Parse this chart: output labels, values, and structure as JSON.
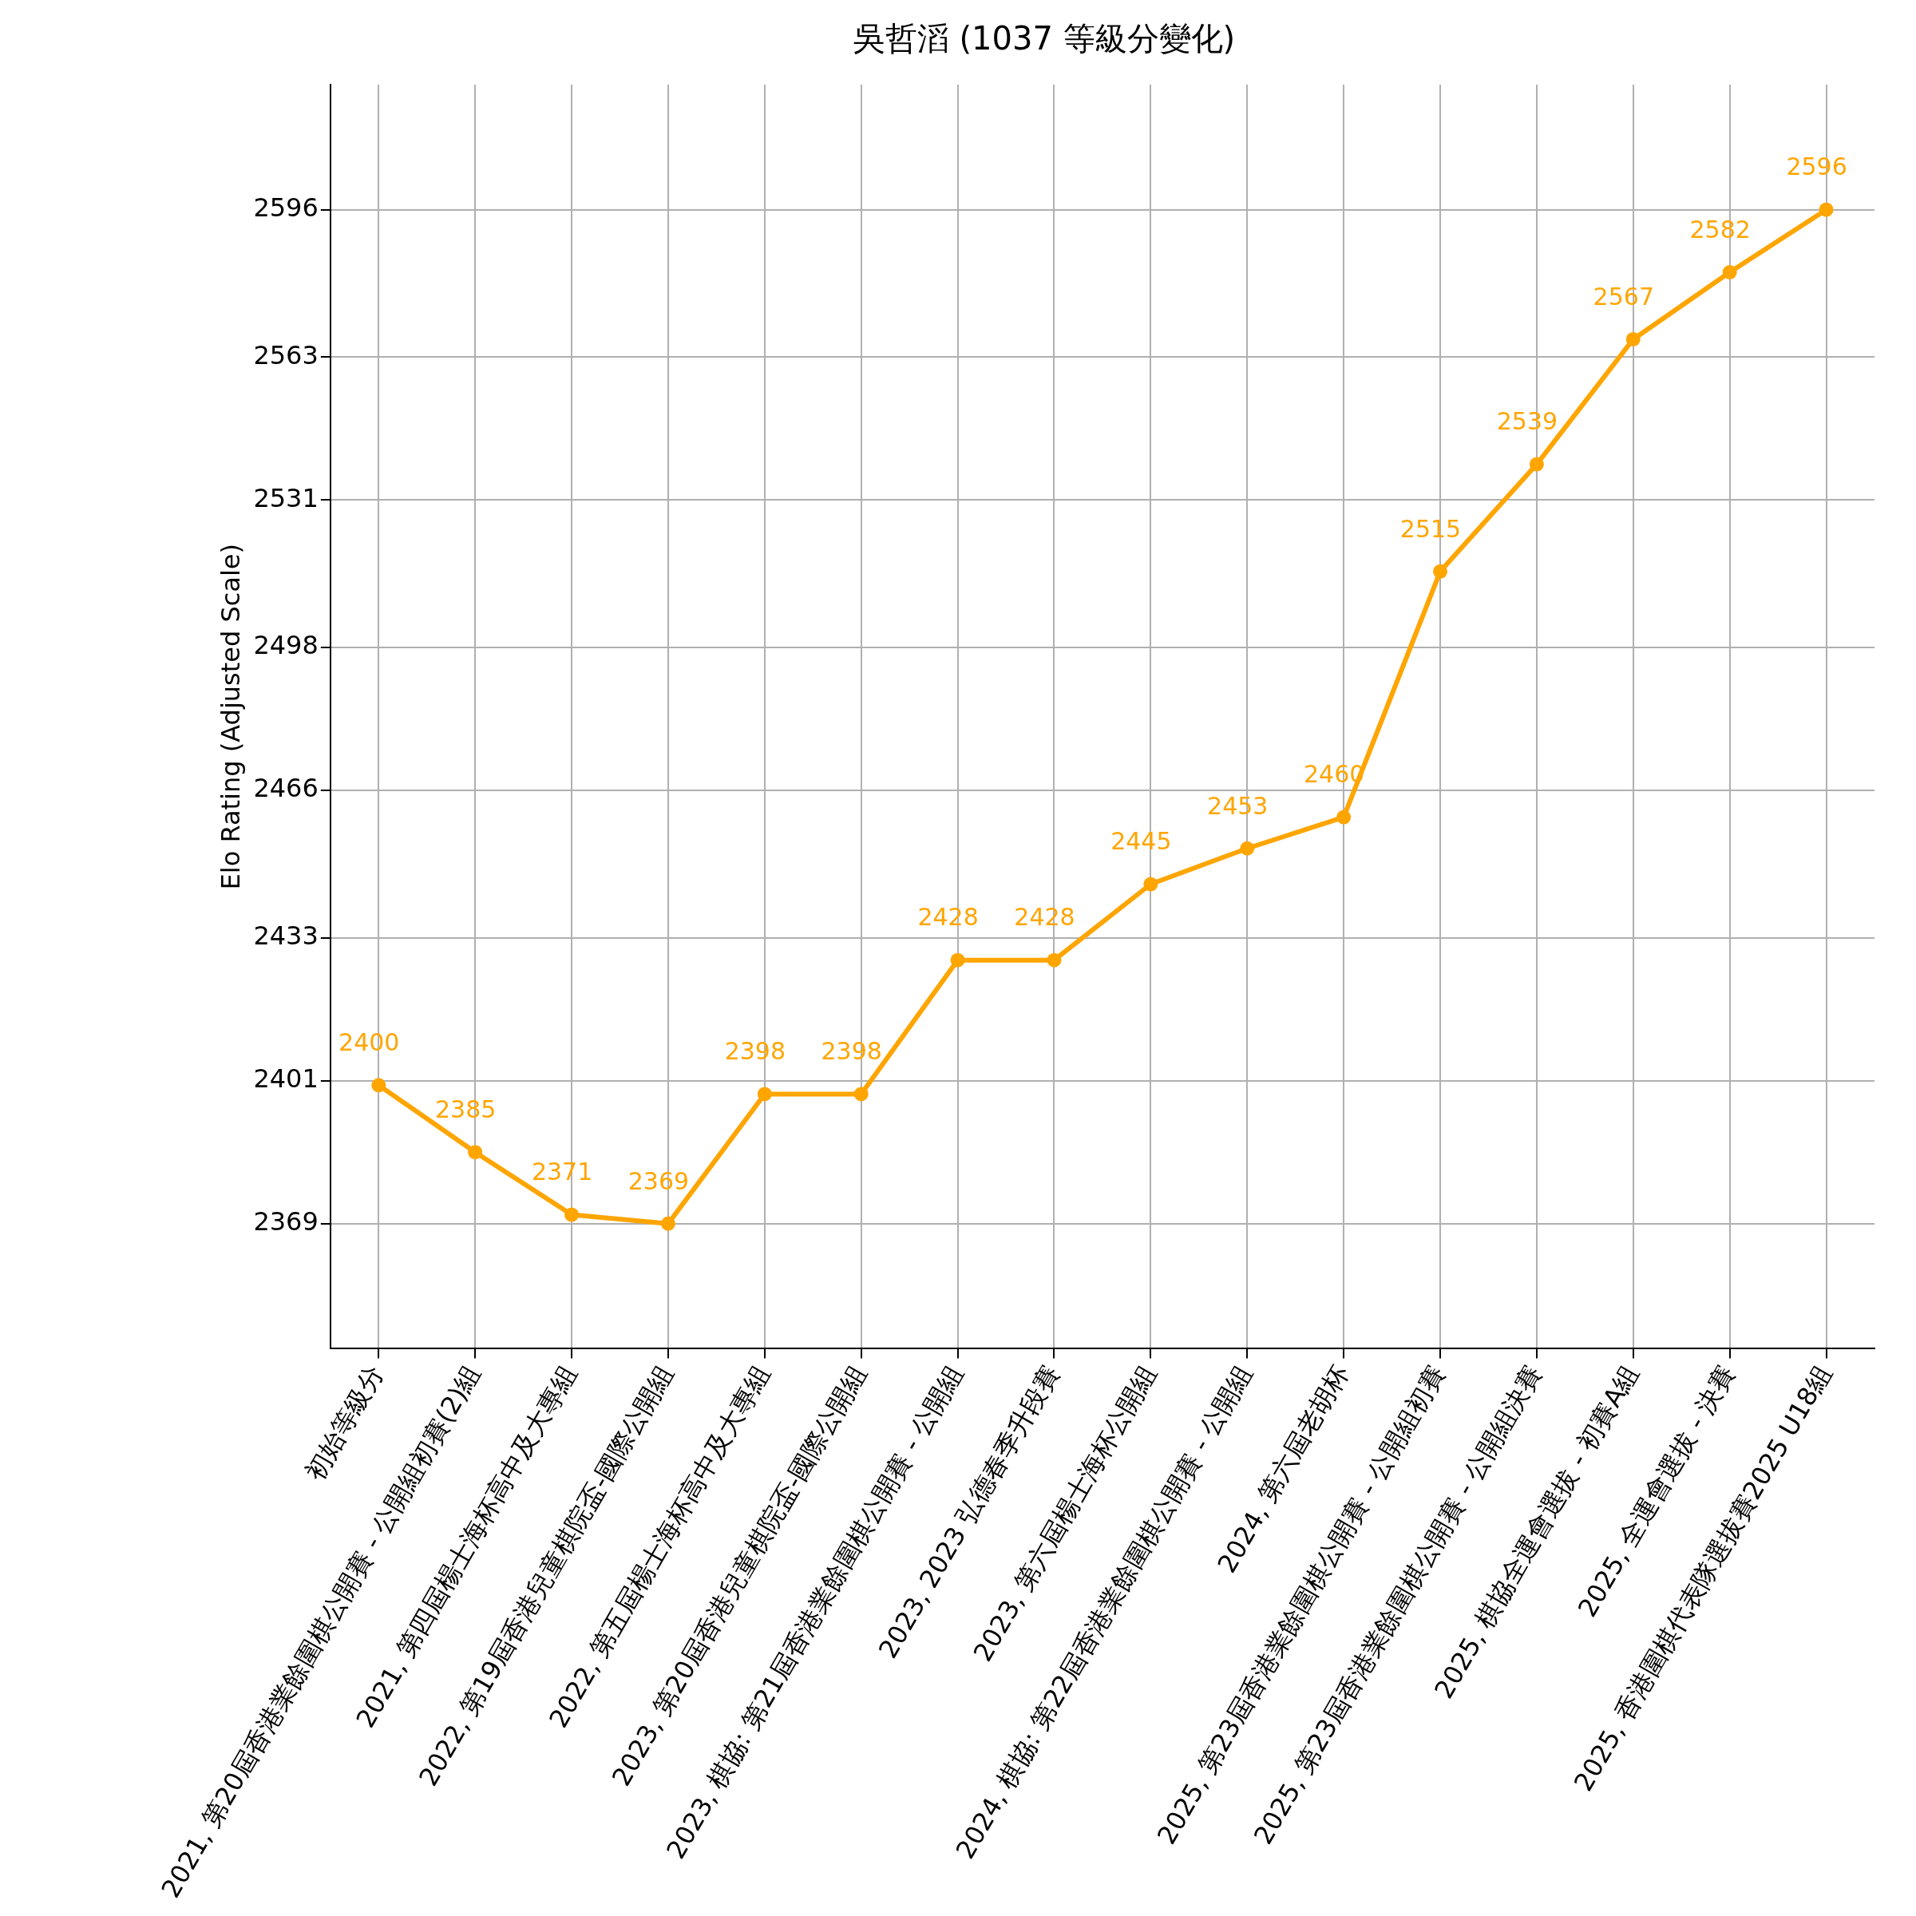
{
  "chart_data": {
    "type": "line",
    "title": "吳哲滔 (1037 等級分變化)",
    "ylabel": "Elo Rating (Adjusted Scale)",
    "categories": [
      "初始等級分",
      "2021, 第20屆香港業餘圍棋公開賽 - 公開組初賽(2)組",
      "2021, 第四屆楊士海杯高中及大專組",
      "2022, 第19屆香港兒童棋院盃-國際公開組",
      "2022, 第五屆楊士海杯高中及大專組",
      "2023, 第20屆香港兒童棋院盃-國際公開組",
      "2023, 棋協: 第21屆香港業餘圍棋公開賽 - 公開組",
      "2023, 2023 弘德春季升段賽",
      "2023, 第六屆楊士海杯公開組",
      "2024, 棋協: 第22屆香港業餘圍棋公開賽 - 公開組",
      "2024, 第六屆老胡杯",
      "2025, 第23屆香港業餘圍棋公開賽 - 公開組初賽",
      "2025, 第23屆香港業餘圍棋公開賽 - 公開組決賽",
      "2025, 棋協全運會選拔 - 初賽A組",
      "2025, 全運會選拔 - 決賽",
      "2025, 香港圍棋代表隊選拔賽2025 U18組"
    ],
    "series": [
      {
        "color": "#ffa500",
        "values": [
          2400,
          2385,
          2371,
          2369,
          2398,
          2398,
          2428,
          2428,
          2445,
          2453,
          2460,
          2515,
          2539,
          2567,
          2582,
          2596
        ]
      }
    ],
    "ylim": [
      2341,
      2624
    ],
    "yticks": [
      2369,
      2401,
      2433,
      2466,
      2498,
      2531,
      2563,
      2596
    ],
    "grid": true,
    "legend": false,
    "marker": "circle",
    "line_style": "solid",
    "data_labels": true
  }
}
